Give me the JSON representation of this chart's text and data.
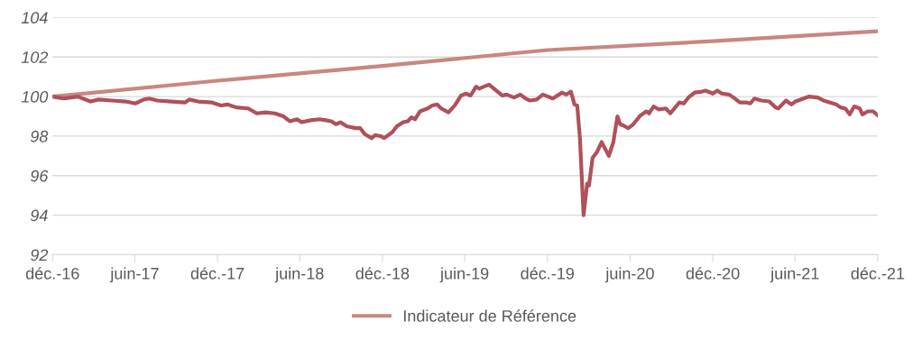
{
  "chart_data": {
    "type": "line",
    "xlim": [
      "2016-12-01",
      "2021-12-01"
    ],
    "xticks": [
      {
        "value": "2016-12-01",
        "label": "déc.-16"
      },
      {
        "value": "2017-06-01",
        "label": "juin-17"
      },
      {
        "value": "2017-12-01",
        "label": "déc.-17"
      },
      {
        "value": "2018-06-01",
        "label": "juin-18"
      },
      {
        "value": "2018-12-01",
        "label": "déc.-18"
      },
      {
        "value": "2019-06-01",
        "label": "juin-19"
      },
      {
        "value": "2019-12-01",
        "label": "déc.-19"
      },
      {
        "value": "2020-06-01",
        "label": "juin-20"
      },
      {
        "value": "2020-12-01",
        "label": "déc.-20"
      },
      {
        "value": "2021-06-01",
        "label": "juin-21"
      },
      {
        "value": "2021-12-01",
        "label": "déc.-21"
      }
    ],
    "ylim": [
      92,
      104
    ],
    "yticks": [
      92,
      94,
      96,
      98,
      100,
      102,
      104
    ],
    "grid": "y",
    "legend": "bottom",
    "marker": "none",
    "line_style": "solid",
    "series": [
      {
        "color": "#b0505a",
        "x": [
          "2016-12-01",
          "2016-12-25",
          "2017-01-26",
          "2017-02-23",
          "2017-03-13",
          "2017-04-12",
          "2017-05-12",
          "2017-06-02",
          "2017-06-21",
          "2017-07-03",
          "2017-07-21",
          "2017-08-21",
          "2017-09-20",
          "2017-09-30",
          "2017-10-19",
          "2017-11-19",
          "2017-12-09",
          "2017-12-23",
          "2018-01-12",
          "2018-02-07",
          "2018-02-26",
          "2018-03-17",
          "2018-04-07",
          "2018-04-26",
          "2018-05-10",
          "2018-05-26",
          "2018-06-05",
          "2018-06-25",
          "2018-07-15",
          "2018-07-29",
          "2018-08-10",
          "2018-08-20",
          "2018-08-30",
          "2018-09-13",
          "2018-10-03",
          "2018-10-13",
          "2018-10-23",
          "2018-11-07",
          "2018-11-15",
          "2018-11-27",
          "2018-12-05",
          "2018-12-23",
          "2019-01-02",
          "2019-01-16",
          "2019-01-26",
          "2019-02-03",
          "2019-02-11",
          "2019-02-22",
          "2019-03-11",
          "2019-03-21",
          "2019-04-01",
          "2019-04-10",
          "2019-04-26",
          "2019-05-10",
          "2019-05-24",
          "2019-06-04",
          "2019-06-14",
          "2019-06-26",
          "2019-07-03",
          "2019-07-13",
          "2019-07-25",
          "2019-08-23",
          "2019-09-02",
          "2019-09-18",
          "2019-10-02",
          "2019-10-14",
          "2019-10-23",
          "2019-11-07",
          "2019-11-21",
          "2019-12-13",
          "2020-01-02",
          "2020-01-12",
          "2020-01-22",
          "2020-01-30",
          "2020-02-05",
          "2020-02-11",
          "2020-02-19",
          "2020-02-27",
          "2020-03-02",
          "2020-03-10",
          "2020-03-20",
          "2020-03-30",
          "2020-04-15",
          "2020-04-25",
          "2020-05-04",
          "2020-05-10",
          "2020-05-20",
          "2020-05-28",
          "2020-06-08",
          "2020-06-24",
          "2020-07-07",
          "2020-07-13",
          "2020-07-23",
          "2020-08-03",
          "2020-08-19",
          "2020-08-29",
          "2020-09-18",
          "2020-09-28",
          "2020-10-08",
          "2020-10-22",
          "2020-11-07",
          "2020-11-15",
          "2020-12-01",
          "2020-12-11",
          "2020-12-21",
          "2021-01-06",
          "2021-01-16",
          "2021-01-30",
          "2021-02-14",
          "2021-02-22",
          "2021-03-03",
          "2021-03-19",
          "2021-04-05",
          "2021-04-19",
          "2021-04-25",
          "2021-05-12",
          "2021-05-24",
          "2021-06-02",
          "2021-07-02",
          "2021-07-21",
          "2021-08-03",
          "2021-08-31",
          "2021-09-10",
          "2021-09-20",
          "2021-09-30",
          "2021-10-10",
          "2021-10-22",
          "2021-10-28",
          "2021-11-09",
          "2021-11-21",
          "2021-12-01"
        ],
        "values": [
          100.0,
          99.9,
          100.0,
          99.75,
          99.85,
          99.8,
          99.75,
          99.65,
          99.85,
          99.9,
          99.8,
          99.75,
          99.7,
          99.85,
          99.75,
          99.7,
          99.55,
          99.6,
          99.45,
          99.4,
          99.15,
          99.2,
          99.15,
          99.0,
          98.75,
          98.85,
          98.7,
          98.8,
          98.85,
          98.8,
          98.75,
          98.6,
          98.7,
          98.5,
          98.4,
          98.4,
          98.1,
          97.9,
          98.05,
          98.0,
          97.9,
          98.2,
          98.5,
          98.7,
          98.75,
          98.95,
          98.85,
          99.25,
          99.4,
          99.55,
          99.6,
          99.4,
          99.2,
          99.55,
          100.05,
          100.15,
          100.05,
          100.5,
          100.4,
          100.5,
          100.6,
          100.05,
          100.1,
          99.95,
          100.1,
          99.9,
          99.8,
          99.85,
          100.1,
          99.9,
          100.2,
          100.1,
          100.25,
          99.6,
          99.55,
          97.9,
          94.0,
          95.6,
          95.5,
          96.9,
          97.2,
          97.7,
          97.0,
          97.7,
          99.0,
          98.6,
          98.5,
          98.4,
          98.6,
          99.05,
          99.25,
          99.15,
          99.5,
          99.35,
          99.4,
          99.15,
          99.7,
          99.65,
          99.95,
          100.2,
          100.25,
          100.3,
          100.15,
          100.3,
          100.15,
          100.1,
          99.95,
          99.7,
          99.7,
          99.65,
          99.9,
          99.8,
          99.75,
          99.45,
          99.4,
          99.8,
          99.6,
          99.75,
          100.0,
          99.95,
          99.8,
          99.6,
          99.45,
          99.4,
          99.1,
          99.5,
          99.4,
          99.1,
          99.25,
          99.25,
          99.05
        ]
      },
      {
        "name": "Indicateur de Référence",
        "color": "#c8877f",
        "x": [
          "2016-12-01",
          "2017-12-01",
          "2018-12-01",
          "2019-12-01",
          "2020-12-01",
          "2021-12-01"
        ],
        "values": [
          100.0,
          100.8,
          101.55,
          102.35,
          102.8,
          103.3
        ]
      }
    ]
  }
}
